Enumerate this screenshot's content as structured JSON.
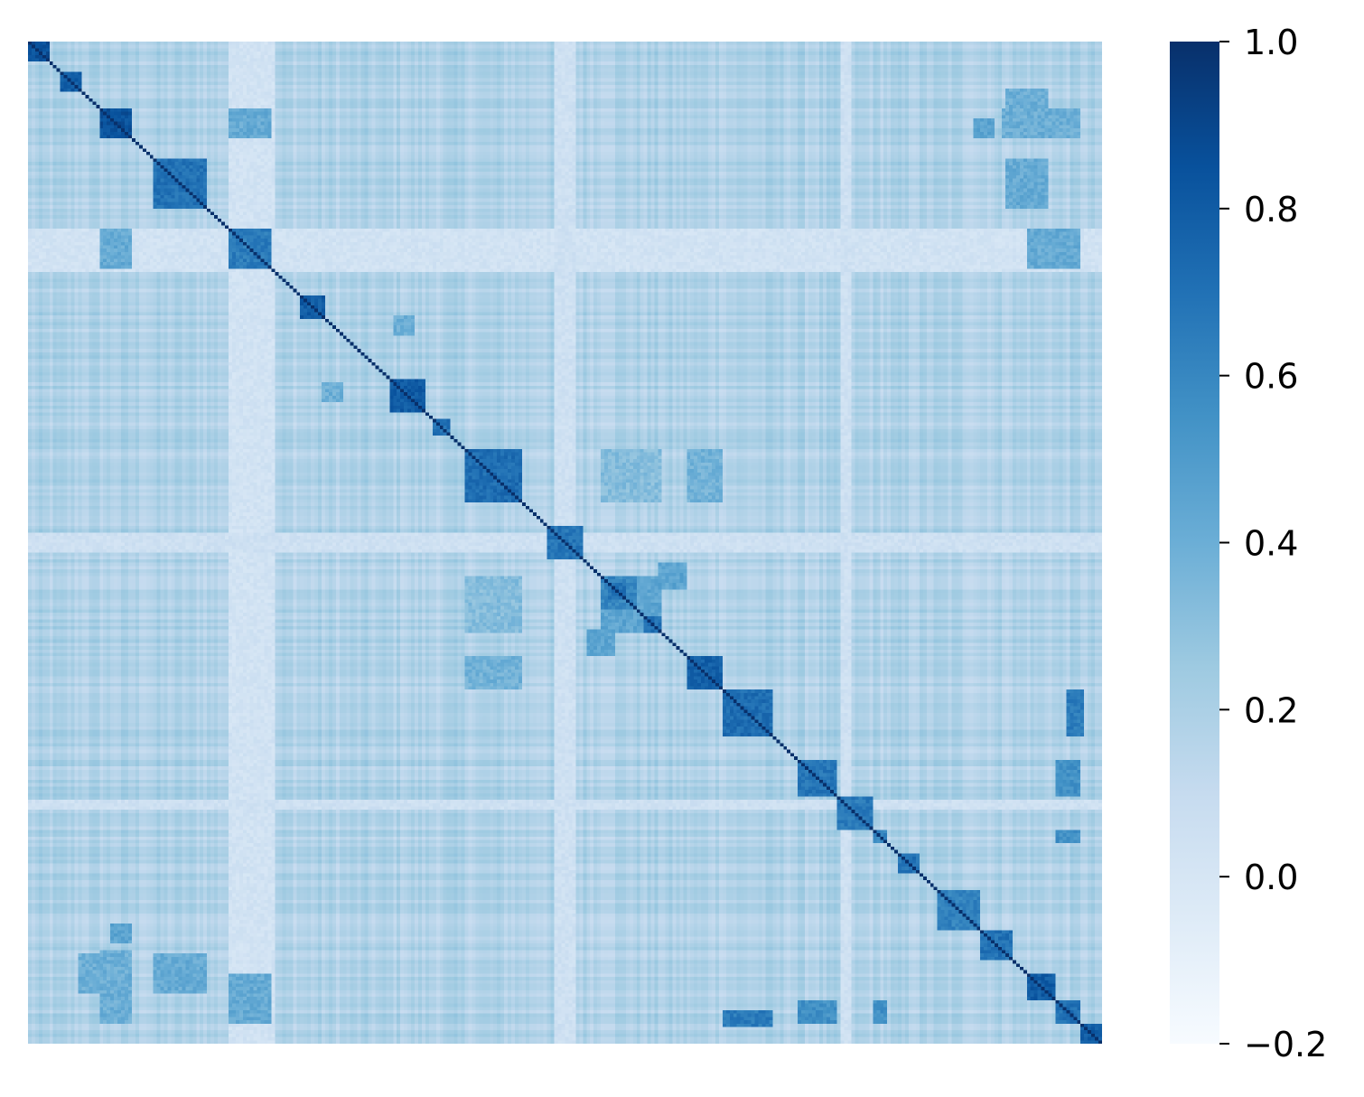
{
  "chart_data": {
    "type": "heatmap",
    "title": "",
    "xlabel": "",
    "ylabel": "",
    "x_tick_labels_shown": false,
    "y_tick_labels_shown": false,
    "colormap": "Blues",
    "colorbar": {
      "vmin": -0.2,
      "vmax": 1.0,
      "ticks": [
        1.0,
        0.8,
        0.6,
        0.4,
        0.2,
        0.0,
        -0.2
      ],
      "tick_labels": [
        "1.0",
        "0.8",
        "0.6",
        "0.4",
        "0.2",
        "0.0",
        "−0.2"
      ],
      "colors": [
        "#f7fbff",
        "#deebf7",
        "#c6dbef",
        "#9ecae1",
        "#6baed6",
        "#4292c6",
        "#2171b5",
        "#08519c",
        "#08306b"
      ]
    },
    "matrix": {
      "kind": "correlation",
      "symmetric": true,
      "diagonal_value": 1.0,
      "approx_size": 600,
      "background_value": 0.18,
      "block_clusters_along_diagonal": [
        {
          "start": 0.0,
          "end": 0.02,
          "value": 0.85
        },
        {
          "start": 0.03,
          "end": 0.05,
          "value": 0.8
        },
        {
          "start": 0.065,
          "end": 0.097,
          "value": 0.85
        },
        {
          "start": 0.118,
          "end": 0.165,
          "value": 0.7
        },
        {
          "start": 0.187,
          "end": 0.226,
          "value": 0.65
        },
        {
          "start": 0.254,
          "end": 0.275,
          "value": 0.8
        },
        {
          "start": 0.338,
          "end": 0.37,
          "value": 0.8
        },
        {
          "start": 0.378,
          "end": 0.393,
          "value": 0.7
        },
        {
          "start": 0.405,
          "end": 0.46,
          "value": 0.72
        },
        {
          "start": 0.483,
          "end": 0.515,
          "value": 0.68
        },
        {
          "start": 0.541,
          "end": 0.557,
          "value": 0.7
        },
        {
          "start": 0.534,
          "end": 0.567,
          "value": 0.6
        },
        {
          "start": 0.572,
          "end": 0.59,
          "value": 0.7
        },
        {
          "start": 0.534,
          "end": 0.59,
          "value": 0.45
        },
        {
          "start": 0.612,
          "end": 0.645,
          "value": 0.78
        },
        {
          "start": 0.645,
          "end": 0.695,
          "value": 0.72
        },
        {
          "start": 0.716,
          "end": 0.753,
          "value": 0.68
        },
        {
          "start": 0.753,
          "end": 0.785,
          "value": 0.66
        },
        {
          "start": 0.785,
          "end": 0.8,
          "value": 0.6
        },
        {
          "start": 0.81,
          "end": 0.83,
          "value": 0.7
        },
        {
          "start": 0.845,
          "end": 0.885,
          "value": 0.62
        },
        {
          "start": 0.885,
          "end": 0.915,
          "value": 0.7
        },
        {
          "start": 0.93,
          "end": 0.955,
          "value": 0.8
        },
        {
          "start": 0.955,
          "end": 0.98,
          "value": 0.7
        },
        {
          "start": 0.98,
          "end": 1.0,
          "value": 0.8
        }
      ],
      "off_diagonal_blocks": [
        {
          "rows": [
            0.065,
            0.097
          ],
          "cols": [
            0.187,
            0.226
          ],
          "value": 0.42
        },
        {
          "rows": [
            0.405,
            0.46
          ],
          "cols": [
            0.534,
            0.59
          ],
          "value": 0.32
        },
        {
          "rows": [
            0.612,
            0.645
          ],
          "cols": [
            0.405,
            0.46
          ],
          "value": 0.38
        },
        {
          "rows": [
            0.716,
            0.753
          ],
          "cols": [
            0.955,
            0.98
          ],
          "value": 0.55
        },
        {
          "rows": [
            0.785,
            0.8
          ],
          "cols": [
            0.955,
            0.98
          ],
          "value": 0.55
        },
        {
          "rows": [
            0.065,
            0.097
          ],
          "cols": [
            0.905,
            0.98
          ],
          "value": 0.4
        },
        {
          "rows": [
            0.188,
            0.226
          ],
          "cols": [
            0.93,
            0.98
          ],
          "value": 0.42
        },
        {
          "rows": [
            0.91,
            0.95
          ],
          "cols": [
            0.046,
            0.065
          ],
          "value": 0.4
        },
        {
          "rows": [
            0.91,
            0.95
          ],
          "cols": [
            0.118,
            0.165
          ],
          "value": 0.42
        },
        {
          "rows": [
            0.965,
            0.983
          ],
          "cols": [
            0.645,
            0.695
          ],
          "value": 0.65
        },
        {
          "rows": [
            0.34,
            0.36
          ],
          "cols": [
            0.272,
            0.294
          ],
          "value": 0.4
        },
        {
          "rows": [
            0.52,
            0.545
          ],
          "cols": [
            0.585,
            0.612
          ],
          "value": 0.45
        },
        {
          "rows": [
            0.88,
            0.9
          ],
          "cols": [
            0.075,
            0.095
          ],
          "value": 0.45
        }
      ],
      "low_correlation_bands": [
        {
          "start": 0.185,
          "end": 0.23,
          "value": 0.03
        },
        {
          "start": 0.49,
          "end": 0.51,
          "value": 0.05
        },
        {
          "start": 0.755,
          "end": 0.765,
          "value": 0.05
        }
      ]
    }
  }
}
